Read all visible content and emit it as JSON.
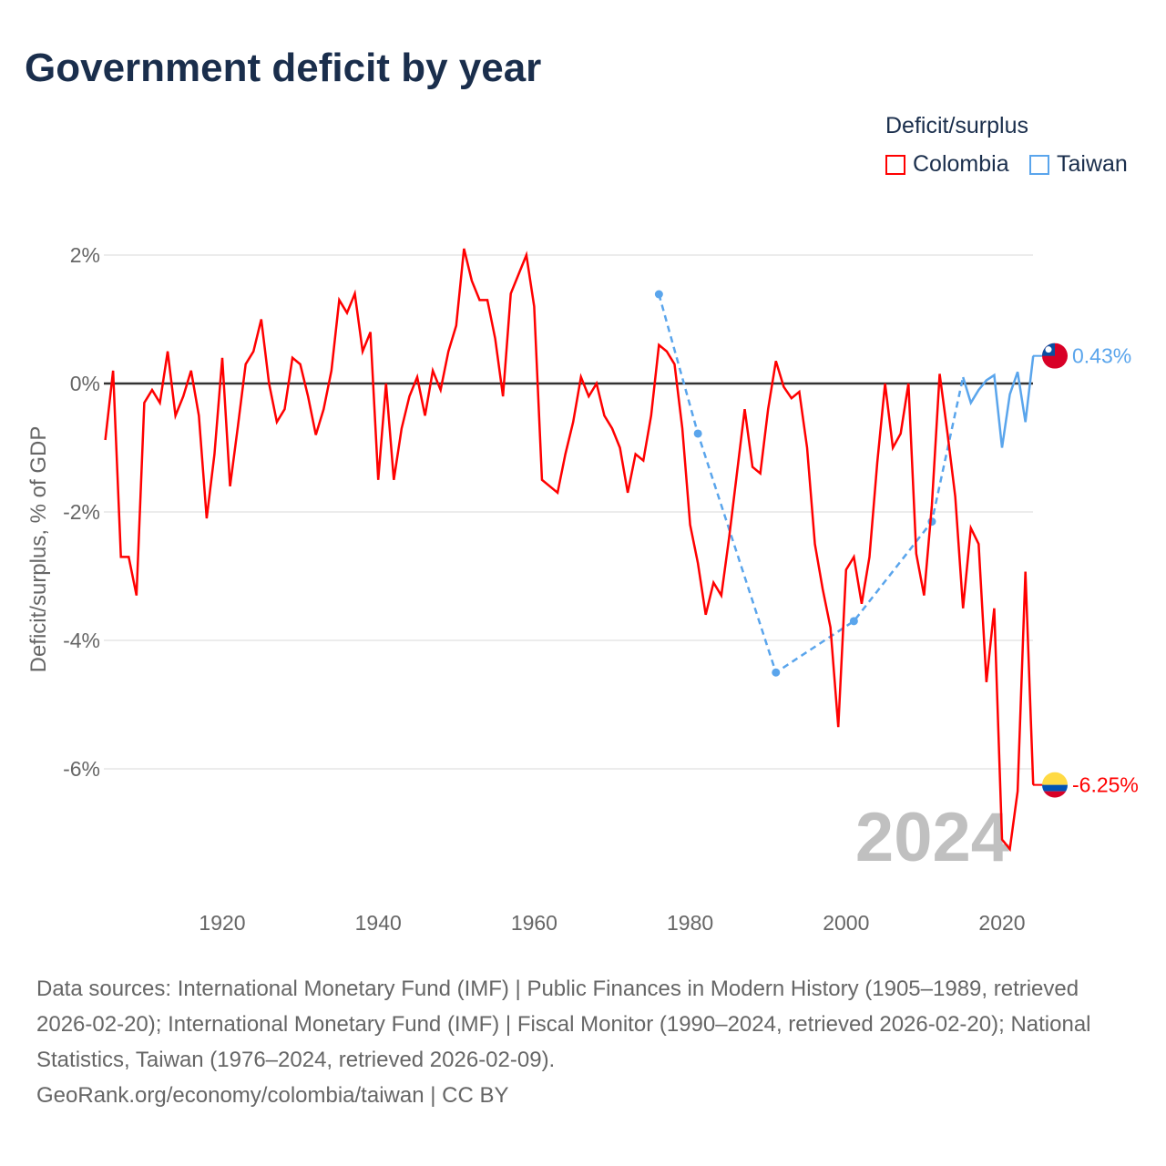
{
  "title": "Government deficit by year",
  "legend": {
    "title": "Deficit/surplus",
    "items": [
      {
        "label": "Colombia",
        "color": "#ff0000"
      },
      {
        "label": "Taiwan",
        "color": "#5aa5ec"
      }
    ]
  },
  "watermark_year": "2024",
  "footer": {
    "sources": "Data sources: International Monetary Fund (IMF) | Public Finances in Modern History (1905–1989, retrieved 2026-02-20); International Monetary Fund (IMF) | Fiscal Monitor (1990–2024, retrieved 2026-02-20); National Statistics, Taiwan (1976–2024, retrieved 2026-02-09).",
    "credit": "GeoRank.org/economy/colombia/taiwan | CC BY"
  },
  "chart_data": {
    "type": "line",
    "title": "Government deficit by year",
    "xlabel": "",
    "ylabel": "Deficit/surplus, % of GDP",
    "xlim": [
      1905,
      2024
    ],
    "ylim": [
      -7.9,
      2.3
    ],
    "x_ticks": [
      1920,
      1940,
      1960,
      1980,
      2000,
      2020
    ],
    "y_ticks": [
      {
        "value": 2,
        "label": "2%"
      },
      {
        "value": 0,
        "label": "0%"
      },
      {
        "value": -2,
        "label": "-2%"
      },
      {
        "value": -4,
        "label": "-4%"
      },
      {
        "value": -6,
        "label": "-6%"
      }
    ],
    "grid": true,
    "legend_position": "top-right",
    "series": [
      {
        "name": "Colombia",
        "color": "#ff0000",
        "end_label": "-6.25%",
        "x": [
          1905,
          1906,
          1907,
          1908,
          1909,
          1910,
          1911,
          1912,
          1913,
          1914,
          1915,
          1916,
          1917,
          1918,
          1919,
          1920,
          1921,
          1922,
          1923,
          1924,
          1925,
          1926,
          1927,
          1928,
          1929,
          1930,
          1931,
          1932,
          1933,
          1934,
          1935,
          1936,
          1937,
          1938,
          1939,
          1940,
          1941,
          1942,
          1943,
          1944,
          1945,
          1946,
          1947,
          1948,
          1949,
          1950,
          1951,
          1952,
          1953,
          1954,
          1955,
          1956,
          1957,
          1958,
          1959,
          1960,
          1961,
          1962,
          1963,
          1964,
          1965,
          1966,
          1967,
          1968,
          1969,
          1970,
          1971,
          1972,
          1973,
          1974,
          1975,
          1976,
          1977,
          1978,
          1979,
          1980,
          1981,
          1982,
          1983,
          1984,
          1985,
          1986,
          1987,
          1988,
          1989,
          1990,
          1991,
          1992,
          1993,
          1994,
          1995,
          1996,
          1997,
          1998,
          1999,
          2000,
          2001,
          2002,
          2003,
          2004,
          2005,
          2006,
          2007,
          2008,
          2009,
          2010,
          2011,
          2012,
          2013,
          2014,
          2015,
          2016,
          2017,
          2018,
          2019,
          2020,
          2021,
          2022,
          2023,
          2024
        ],
        "values": [
          -0.88,
          0.2,
          -2.7,
          -2.7,
          -3.3,
          -0.3,
          -0.1,
          -0.3,
          0.5,
          -0.5,
          -0.2,
          0.2,
          -0.5,
          -2.1,
          -1.1,
          0.4,
          -1.6,
          -0.67,
          0.3,
          0.5,
          1.0,
          0,
          -0.6,
          -0.4,
          0.4,
          0.3,
          -0.2,
          -0.8,
          -0.4,
          0.2,
          1.3,
          1.1,
          1.4,
          0.5,
          0.8,
          -1.5,
          0,
          -1.5,
          -0.7,
          -0.2,
          0.1,
          -0.5,
          0.2,
          -0.1,
          0.5,
          0.9,
          2.1,
          1.6,
          1.3,
          1.3,
          0.7,
          -0.2,
          1.4,
          1.7,
          2.0,
          1.2,
          -1.5,
          -1.6,
          -1.7,
          -1.1,
          -0.6,
          0.1,
          -0.2,
          0,
          -0.5,
          -0.7,
          -1.0,
          -1.7,
          -1.1,
          -1.2,
          -0.5,
          0.6,
          0.5,
          0.3,
          -0.7,
          -2.2,
          -2.8,
          -3.6,
          -3.1,
          -3.3,
          -2.4,
          -1.4,
          -0.4,
          -1.3,
          -1.4,
          -0.4,
          0.35,
          -0.05,
          -0.23,
          -0.13,
          -1.0,
          -2.5,
          -3.2,
          -3.8,
          -5.35,
          -2.9,
          -2.7,
          -3.43,
          -2.7,
          -1.23,
          0,
          -1.0,
          -0.78,
          0,
          -2.65,
          -3.3,
          -1.9,
          0.15,
          -0.77,
          -1.76,
          -3.5,
          -2.25,
          -2.5,
          -4.65,
          -3.5,
          -7.1,
          -7.25,
          -6.35,
          -2.93,
          -6.25
        ]
      },
      {
        "name": "Taiwan",
        "color": "#5aa5ec",
        "end_label": "0.43%",
        "sparse_x": [
          1976,
          1981,
          1991,
          2001,
          2011,
          2015
        ],
        "sparse_values": [
          1.39,
          -0.78,
          -4.5,
          -3.7,
          -2.15,
          0.1
        ],
        "x": [
          2015,
          2016,
          2017,
          2018,
          2019,
          2020,
          2021,
          2022,
          2023,
          2024
        ],
        "values": [
          0.1,
          -0.3,
          -0.1,
          0.05,
          0.13,
          -1.0,
          -0.17,
          0.18,
          -0.6,
          0.43
        ]
      }
    ]
  }
}
